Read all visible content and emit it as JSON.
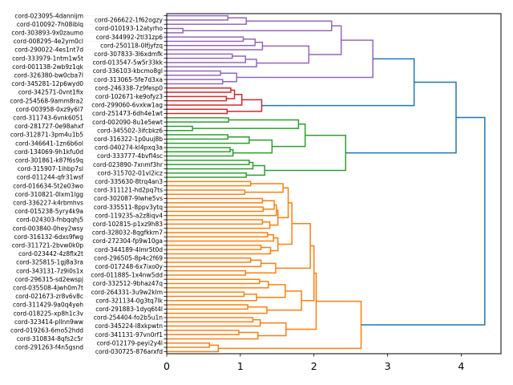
{
  "chart_data": {
    "type": "dendrogram",
    "orientation": "left",
    "title": "",
    "xlabel": "",
    "ylabel": "",
    "xlim": [
      0,
      4.54
    ],
    "xticks": [
      0,
      1,
      2,
      3,
      4
    ],
    "grid": false,
    "above_threshold_color": "#1f77b4",
    "leaves": [
      "cord-023095-4dannijm",
      "cord-266622-1f62ogzy",
      "cord-010092-7h08iblq",
      "cord-010193-12atyrho",
      "cord-303893-9x0zaumo",
      "cord-344992-2tl31zp6",
      "cord-008295-4e2ym0cl",
      "cord-250118-0lfjyfzq",
      "cord-290022-4es1nt7d",
      "cord-307833-3l6xdmfk",
      "cord-333979-1ntm1w5t",
      "cord-013547-5w5r33kk",
      "cord-001138-2wb9z1qk",
      "cord-336103-kbcmo8gl",
      "cord-326380-bw0cba7l",
      "cord-313065-5fe7d3xa",
      "cord-345281-12p6wyd0",
      "cord-246338-7z9fesp0",
      "cord-342571-0vnt1fix",
      "cord-102671-ke9ofyz3",
      "cord-254568-9amm8ra2",
      "cord-299060-6vxkw1ag",
      "cord-003958-0xz9y6l7",
      "cord-251473-6dh4e1wt",
      "cord-311743-6vnk6051",
      "cord-002090-8u1e5ewt",
      "cord-281727-0e98ahxf",
      "cord-345502-3ifcbkz6",
      "cord-312871-3pm4u1b5",
      "cord-316322-1p0uuj8b",
      "cord-346641-1zn6b6ol",
      "cord-040274-kl4pxq3a",
      "cord-134069-9h1kfu0d",
      "cord-333777-4bvfl4sc",
      "cord-301861-k87f6s9q",
      "cord-023890-7xnmf3hr",
      "cord-315907-1ihbp7sl",
      "cord-315702-01vl2icz",
      "cord-011244-qfr31wsf",
      "cord-335630-8trq4an3",
      "cord-016634-5t2e03wo",
      "cord-311121-hd2pq7ts",
      "cord-310821-0lxm1lgg",
      "cord-302087-9lwhe5vs",
      "cord-336227-k4rbmhvs",
      "cord-335511-8ppv3ytq",
      "cord-015238-5yry4k9a",
      "cord-119235-a2z8iqv4",
      "cord-024303-fnbqqhj5",
      "cord-102815-p1xz9h83",
      "cord-003840-0hey2wsy",
      "cord-328032-8qgfkkm7",
      "cord-316132-6dxs9fwg",
      "cord-272304-fp9w10ga",
      "cord-311721-2bvw0k0p",
      "cord-344189-4lmr5t0d",
      "cord-023442-4z8flx2t",
      "cord-296505-8p4c2f69",
      "cord-325815-1gj8a3ra",
      "cord-017248-6x7ixo0y",
      "cord-343131-7z9i0s1x",
      "cord-011885-1x4nw5dd",
      "cord-296315-sd2ewspj",
      "cord-332512-9bhaz47q",
      "cord-035508-4jwh0m7t",
      "cord-264331-3u9w2klm",
      "cord-021673-zr8v6v8c",
      "cord-321134-0g3tq7lk",
      "cord-311429-9a0q4yeh",
      "cord-291883-1dyq6t4l",
      "cord-018225-xp8h1c3v",
      "cord-254404-fo2b5u1n",
      "cord-323414-pllnn9ww",
      "cord-345224-l8xkpwtn",
      "cord-019263-6mo52hdd",
      "cord-341131-97vn0rf1",
      "cord-310834-8qfs2c5r",
      "cord-012179-peyi2y4l",
      "cord-291263-f4n5gsnd",
      "cord-030725-876arxfd"
    ],
    "tree": {
      "h": 4.32,
      "c": [
        {
          "h": 3.93,
          "c": [
            {
              "h": 3.36,
              "c": [
                {
                  "h": 2.8,
                  "color": "#9467bd",
                  "c": [
                    {
                      "h": 2.37,
                      "c": [
                        {
                          "h": 2.24,
                          "c": [
                            {
                              "h": 1.08,
                              "c": [
                                {
                                  "h": 0.83,
                                  "c": [
                                    0,
                                    1
                                  ]
                                },
                                2
                              ]
                            },
                            {
                              "h": 0.22,
                              "c": [
                                3,
                                4
                              ]
                            }
                          ]
                        },
                        {
                          "h": 1.93,
                          "c": [
                            {
                              "h": 1.3,
                              "c": [
                                {
                                  "h": 1.2,
                                  "c": [
                                    {
                                      "h": 1.04,
                                      "c": [
                                        5,
                                        6
                                      ]
                                    },
                                    7
                                  ]
                                },
                                8
                              ]
                            },
                            {
                              "h": 1.22,
                              "c": [
                                {
                                  "h": 1.07,
                                  "c": [
                                    {
                                      "h": 0.89,
                                      "c": [
                                        9,
                                        10
                                      ]
                                    },
                                    11
                                  ]
                                },
                                12
                              ]
                            }
                          ]
                        }
                      ]
                    },
                    {
                      "h": 0.95,
                      "c": [
                        {
                          "h": 0.73,
                          "c": [
                            13,
                            14
                          ]
                        },
                        {
                          "h": 0.76,
                          "c": [
                            15,
                            16
                          ]
                        }
                      ]
                    }
                  ]
                },
                {
                  "h": 1.29,
                  "color": "#d62728",
                  "c": [
                    {
                      "h": 1.02,
                      "c": [
                        {
                          "h": 0.92,
                          "c": [
                            {
                              "h": 0.87,
                              "c": [
                                17,
                                18
                              ]
                            },
                            {
                              "h": 0.81,
                              "c": [
                                19,
                                20
                              ]
                            }
                          ]
                        },
                        21
                      ]
                    },
                    {
                      "h": 0.82,
                      "c": [
                        22,
                        23
                      ]
                    }
                  ]
                }
              ]
            },
            {
              "h": 2.43,
              "color": "#2ca02c",
              "c": [
                {
                  "h": 1.88,
                  "c": [
                    {
                      "h": 1.79,
                      "c": [
                        {
                          "h": 0.84,
                          "c": [
                            24,
                            25
                          ]
                        },
                        {
                          "h": 0.35,
                          "c": [
                            26,
                            27
                          ]
                        }
                      ]
                    },
                    {
                      "h": 1.43,
                      "c": [
                        {
                          "h": 1.12,
                          "c": [
                            {
                              "h": 0.83,
                              "c": [
                                28,
                                29
                              ]
                            },
                            30
                          ]
                        },
                        {
                          "h": 0.9,
                          "c": [
                            {
                              "h": 0.86,
                              "c": [
                                31,
                                32
                              ]
                            },
                            33
                          ]
                        }
                      ]
                    }
                  ]
                },
                {
                  "h": 1.33,
                  "c": [
                    {
                      "h": 1.17,
                      "c": [
                        {
                          "h": 1.12,
                          "c": [
                            34,
                            35
                          ]
                        },
                        36
                      ]
                    },
                    {
                      "h": 1.08,
                      "c": [
                        37,
                        38
                      ]
                    }
                  ]
                }
              ]
            }
          ]
        },
        {
          "h": 2.64,
          "color": "#ff7f0e",
          "c": [
            {
              "h": 2.03,
              "c": [
                {
                  "h": 2.0,
                  "c": [
                    {
                      "h": 1.95,
                      "c": [
                        {
                          "h": 1.7,
                          "c": [
                            {
                              "h": 1.65,
                              "c": [
                                {
                                  "h": 1.58,
                                  "c": [
                                    {
                                      "h": 1.14,
                                      "c": [
                                        39,
                                        40
                                      ]
                                    },
                                    {
                                      "h": 1.06,
                                      "c": [
                                        41,
                                        42
                                      ]
                                    }
                                  ]
                                },
                                {
                                  "h": 1.51,
                                  "c": [
                                    {
                                      "h": 1.49,
                                      "c": [
                                        {
                                          "h": 1.46,
                                          "c": [
                                            {
                                              "h": 1.3,
                                              "c": [
                                                43,
                                                44
                                              ]
                                            },
                                            {
                                              "h": 1.31,
                                              "c": [
                                                45,
                                                46
                                              ]
                                            }
                                          ]
                                        },
                                        47
                                      ]
                                    },
                                    {
                                      "h": 1.4,
                                      "c": [
                                        {
                                          "h": 1.3,
                                          "c": [
                                            48,
                                            49
                                          ]
                                        },
                                        50
                                      ]
                                    }
                                  ]
                                }
                              ]
                            },
                            {
                              "h": 1.51,
                              "c": [
                                {
                                  "h": 1.45,
                                  "c": [
                                    {
                                      "h": 1.37,
                                      "c": [
                                        51,
                                        52
                                      ]
                                    },
                                    53
                                  ]
                                },
                                {
                                  "h": 1.41,
                                  "c": [
                                    {
                                      "h": 1.28,
                                      "c": [
                                        54,
                                        55
                                      ]
                                    },
                                    56
                                  ]
                                }
                              ]
                            }
                          ]
                        },
                        {
                          "h": 1.48,
                          "c": [
                            {
                              "h": 1.28,
                              "c": [
                                {
                                  "h": 1.14,
                                  "c": [
                                    57,
                                    58
                                  ]
                                },
                                59
                              ]
                            },
                            {
                              "h": 1.07,
                              "c": [
                                60,
                                61
                              ]
                            }
                          ]
                        }
                      ]
                    },
                    {
                      "h": 1.83,
                      "c": [
                        {
                          "h": 1.61,
                          "c": [
                            {
                              "h": 1.38,
                              "c": [
                                {
                                  "h": 1.26,
                                  "c": [
                                    62,
                                    63
                                  ]
                                },
                                64
                              ]
                            },
                            {
                              "h": 1.22,
                              "c": [
                                {
                                  "h": 1.05,
                                  "c": [
                                    65,
                                    66
                                  ]
                                },
                                67
                              ]
                            }
                          ]
                        },
                        {
                          "h": 1.36,
                          "c": [
                            {
                              "h": 1.1,
                              "c": [
                                68,
                                69
                              ]
                            },
                            70
                          ]
                        }
                      ]
                    }
                  ]
                },
                {
                  "h": 1.62,
                  "c": [
                    {
                      "h": 1.27,
                      "c": [
                        {
                          "h": 1.17,
                          "c": [
                            71,
                            72
                          ]
                        },
                        73
                      ]
                    },
                    {
                      "h": 1.24,
                      "c": [
                        {
                          "h": 0.98,
                          "c": [
                            74,
                            75
                          ]
                        },
                        76
                      ]
                    }
                  ]
                }
              ]
            },
            {
              "h": 0.7,
              "c": [
                {
                  "h": 0.58,
                  "c": [
                    77,
                    78
                  ]
                },
                79
              ]
            }
          ]
        }
      ]
    }
  }
}
